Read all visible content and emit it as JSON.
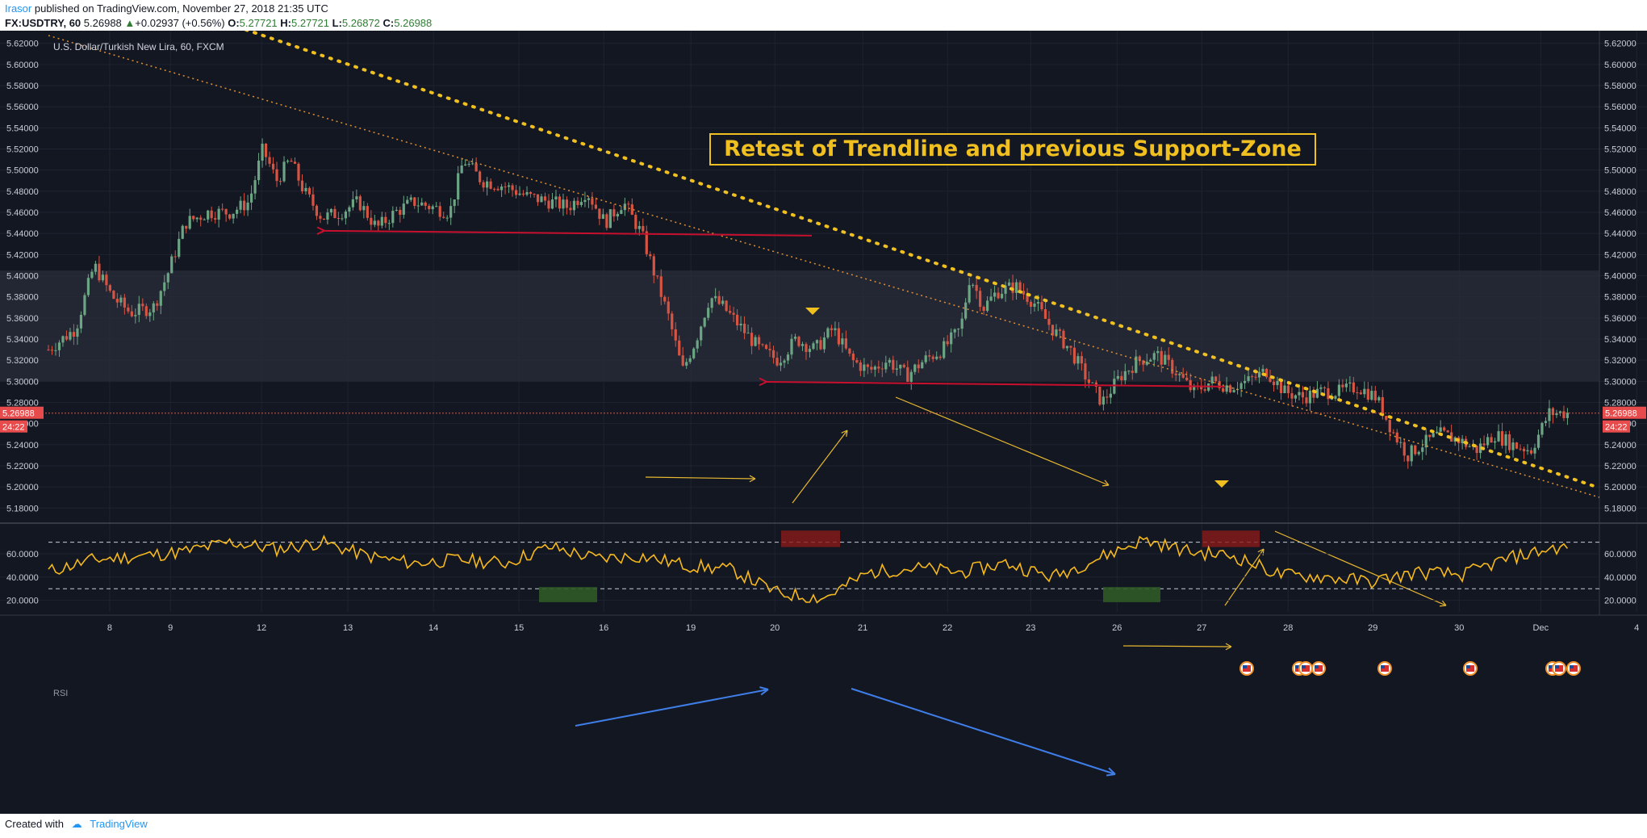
{
  "header": {
    "author": "Irasor",
    "published": "published on TradingView.com, November 27, 2018 21:35 UTC",
    "symbol": "FX:USDTRY, 60",
    "last": "5.26988",
    "change": "+0.02937 (+0.56%)",
    "o_label": "O:",
    "o_value": "5.27721",
    "h_label": "H:",
    "h_value": "5.27721",
    "l_label": "L:",
    "l_value": "5.26872",
    "c_label": "C:",
    "c_value": "5.26988"
  },
  "footer": {
    "created_with": "Created with",
    "brand": "TradingView"
  },
  "colors": {
    "bg": "#131722",
    "up": "#6ba583",
    "down": "#d75442",
    "rsi": "#f5b81e",
    "accent": "#f0c020",
    "red_line": "#c8102e",
    "blue": "#3f7ee8"
  },
  "chart_data": [
    {
      "type": "candlestick",
      "title": "U.S. Dollar/Turkish New Lira, 60, FXCM",
      "annotation": "Retest of Trendline and previous Support-Zone",
      "y_ticks": [
        "5.62000",
        "5.60000",
        "5.58000",
        "5.56000",
        "5.54000",
        "5.52000",
        "5.50000",
        "5.48000",
        "5.46000",
        "5.44000",
        "5.42000",
        "5.40000",
        "5.38000",
        "5.36000",
        "5.34000",
        "5.32000",
        "5.30000",
        "5.28000",
        "5.26000",
        "5.24000",
        "5.22000",
        "5.20000",
        "5.18000"
      ],
      "ylim": [
        5.168,
        5.632
      ],
      "x_ticks": [
        "8",
        "9",
        "12",
        "13",
        "14",
        "15",
        "16",
        "19",
        "20",
        "21",
        "22",
        "23",
        "26",
        "27",
        "28",
        "29",
        "30",
        "Dec",
        "4"
      ],
      "current_price": "5.26988",
      "countdown": "24:22",
      "support_zone": [
        5.3,
        5.405
      ],
      "resistance_levels": [
        5.4395,
        5.295
      ],
      "close_path": [
        [
          0.0,
          5.33
        ],
        [
          0.6,
          5.35
        ],
        [
          1.0,
          5.41
        ],
        [
          1.4,
          5.38
        ],
        [
          1.8,
          5.365
        ],
        [
          2.3,
          5.37
        ],
        [
          2.6,
          5.4
        ],
        [
          3.0,
          5.45
        ],
        [
          3.5,
          5.46
        ],
        [
          4.0,
          5.46
        ],
        [
          4.4,
          5.47
        ],
        [
          4.7,
          5.52
        ],
        [
          5.0,
          5.49
        ],
        [
          5.3,
          5.51
        ],
        [
          5.6,
          5.48
        ],
        [
          6.0,
          5.455
        ],
        [
          6.4,
          5.46
        ],
        [
          6.8,
          5.47
        ],
        [
          7.2,
          5.445
        ],
        [
          7.6,
          5.46
        ],
        [
          8.0,
          5.47
        ],
        [
          8.4,
          5.465
        ],
        [
          8.8,
          5.46
        ],
        [
          9.1,
          5.51
        ],
        [
          9.5,
          5.49
        ],
        [
          10.0,
          5.485
        ],
        [
          10.5,
          5.475
        ],
        [
          11.0,
          5.47
        ],
        [
          11.4,
          5.465
        ],
        [
          11.8,
          5.48
        ],
        [
          12.2,
          5.45
        ],
        [
          12.6,
          5.47
        ],
        [
          13.0,
          5.44
        ],
        [
          13.3,
          5.4
        ],
        [
          13.6,
          5.36
        ],
        [
          13.9,
          5.31
        ],
        [
          14.2,
          5.34
        ],
        [
          14.5,
          5.38
        ],
        [
          14.8,
          5.37
        ],
        [
          15.2,
          5.35
        ],
        [
          15.6,
          5.33
        ],
        [
          16.0,
          5.32
        ],
        [
          16.4,
          5.34
        ],
        [
          16.8,
          5.33
        ],
        [
          17.2,
          5.35
        ],
        [
          17.6,
          5.32
        ],
        [
          18.0,
          5.31
        ],
        [
          18.4,
          5.32
        ],
        [
          18.8,
          5.305
        ],
        [
          19.2,
          5.32
        ],
        [
          19.6,
          5.33
        ],
        [
          20.0,
          5.35
        ],
        [
          20.2,
          5.4
        ],
        [
          20.5,
          5.37
        ],
        [
          20.8,
          5.385
        ],
        [
          21.2,
          5.39
        ],
        [
          21.6,
          5.375
        ],
        [
          22.0,
          5.35
        ],
        [
          22.4,
          5.33
        ],
        [
          22.8,
          5.3
        ],
        [
          23.1,
          5.28
        ],
        [
          23.5,
          5.305
        ],
        [
          23.9,
          5.32
        ],
        [
          24.3,
          5.325
        ],
        [
          24.7,
          5.31
        ],
        [
          25.1,
          5.29
        ],
        [
          25.5,
          5.3
        ],
        [
          25.9,
          5.295
        ],
        [
          26.3,
          5.3
        ],
        [
          26.7,
          5.31
        ],
        [
          27.1,
          5.29
        ],
        [
          27.5,
          5.285
        ],
        [
          27.9,
          5.29
        ],
        [
          28.3,
          5.29
        ],
        [
          28.7,
          5.295
        ],
        [
          29.1,
          5.285
        ],
        [
          29.5,
          5.25
        ],
        [
          29.8,
          5.23
        ],
        [
          30.1,
          5.24
        ],
        [
          30.5,
          5.25
        ],
        [
          30.9,
          5.245
        ],
        [
          31.3,
          5.235
        ],
        [
          31.7,
          5.25
        ],
        [
          32.1,
          5.24
        ],
        [
          32.5,
          5.235
        ],
        [
          32.9,
          5.27
        ],
        [
          33.3,
          5.27
        ]
      ]
    },
    {
      "type": "line",
      "title": "RSI",
      "y_ticks": [
        "60.0000",
        "40.0000",
        "20.0000"
      ],
      "ylim": [
        10,
        85
      ],
      "levels": [
        70,
        30
      ],
      "x": [
        0,
        1,
        2,
        3,
        4,
        5,
        6,
        7,
        8,
        9,
        10,
        11,
        12,
        13,
        14,
        15,
        16,
        17,
        18,
        19,
        20,
        21,
        22,
        23,
        24,
        25,
        26,
        27,
        28,
        29,
        30,
        31,
        32,
        33
      ],
      "values": [
        45,
        55,
        58,
        62,
        70,
        64,
        70,
        58,
        52,
        55,
        52,
        66,
        56,
        58,
        50,
        46,
        26,
        22,
        44,
        48,
        44,
        52,
        40,
        56,
        72,
        62,
        58,
        42,
        40,
        36,
        44,
        42,
        56,
        65
      ]
    }
  ]
}
